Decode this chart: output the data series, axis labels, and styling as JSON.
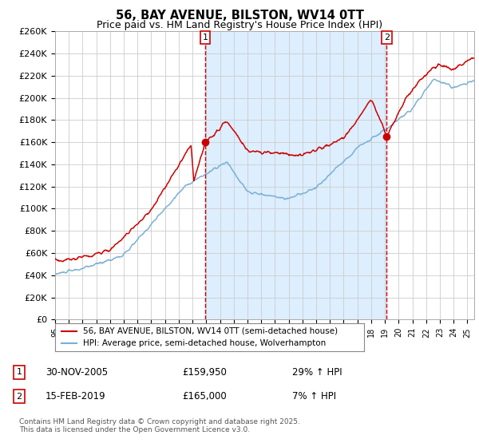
{
  "title": "56, BAY AVENUE, BILSTON, WV14 0TT",
  "subtitle": "Price paid vs. HM Land Registry's House Price Index (HPI)",
  "ylim": [
    0,
    260000
  ],
  "yticks": [
    0,
    20000,
    40000,
    60000,
    80000,
    100000,
    120000,
    140000,
    160000,
    180000,
    200000,
    220000,
    240000,
    260000
  ],
  "line1_color": "#cc0000",
  "line2_color": "#7ab0d4",
  "shade_color": "#ddeeff",
  "background_color": "#ffffff",
  "grid_color": "#cccccc",
  "legend1": "56, BAY AVENUE, BILSTON, WV14 0TT (semi-detached house)",
  "legend2": "HPI: Average price, semi-detached house, Wolverhampton",
  "annotation1_label": "1",
  "annotation1_date": "30-NOV-2005",
  "annotation1_price": "£159,950",
  "annotation1_hpi": "29% ↑ HPI",
  "annotation2_label": "2",
  "annotation2_date": "15-FEB-2019",
  "annotation2_price": "£165,000",
  "annotation2_hpi": "7% ↑ HPI",
  "footnote": "Contains HM Land Registry data © Crown copyright and database right 2025.\nThis data is licensed under the Open Government Licence v3.0.",
  "sale1_x": 2005.917,
  "sale1_y": 159950,
  "sale2_x": 2019.125,
  "sale2_y": 165000,
  "xmin": 1995,
  "xmax": 2025.5
}
